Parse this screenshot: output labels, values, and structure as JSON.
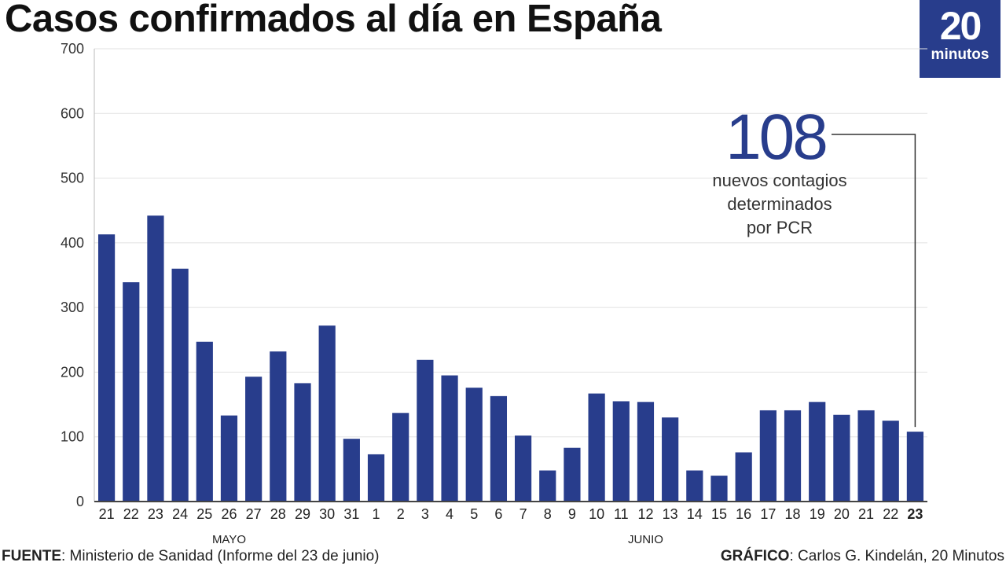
{
  "header": {
    "title": "Casos confirmados al día en España"
  },
  "logo": {
    "number": "20",
    "word": "minutos"
  },
  "colors": {
    "bar": "#283d8c",
    "grid": "#e2e2e2",
    "axis": "#444444"
  },
  "chart_data": {
    "type": "bar",
    "title": "Casos confirmados al día en España",
    "categories": [
      "21",
      "22",
      "23",
      "24",
      "25",
      "26",
      "27",
      "28",
      "29",
      "30",
      "31",
      "1",
      "2",
      "3",
      "4",
      "5",
      "6",
      "7",
      "8",
      "9",
      "10",
      "11",
      "12",
      "13",
      "14",
      "15",
      "16",
      "17",
      "18",
      "19",
      "20",
      "21",
      "22",
      "23"
    ],
    "highlight_last_label": true,
    "month_groups": [
      {
        "label": "MAYO",
        "start": 0,
        "end": 10
      },
      {
        "label": "JUNIO",
        "start": 11,
        "end": 33
      }
    ],
    "values": [
      413,
      339,
      442,
      360,
      247,
      133,
      193,
      232,
      183,
      272,
      97,
      73,
      137,
      219,
      195,
      176,
      163,
      102,
      48,
      83,
      167,
      155,
      154,
      130,
      48,
      40,
      76,
      141,
      141,
      154,
      134,
      141,
      125,
      108
    ],
    "ylim": [
      0,
      700
    ],
    "yticks": [
      0,
      100,
      200,
      300,
      400,
      500,
      600,
      700
    ],
    "grid": true,
    "xlabel": "",
    "ylabel": "",
    "annotation": {
      "value": "108",
      "lines": [
        "nuevos contagios",
        "determinados",
        "por PCR"
      ],
      "target_index": 33
    }
  },
  "footer": {
    "source_label": "FUENTE",
    "source_text": ": Ministerio de Sanidad (Informe del 23 de junio)",
    "credit_label": "GRÁFICO",
    "credit_text": ": Carlos G. Kindelán, 20 Minutos"
  }
}
